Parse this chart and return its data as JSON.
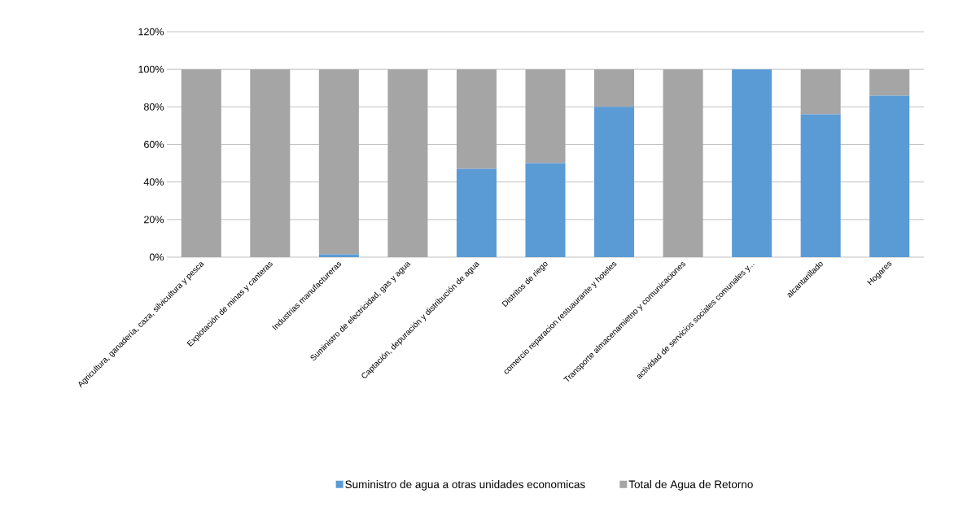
{
  "chart_data": {
    "type": "bar",
    "stacked": true,
    "categories": [
      "Agricultura, ganadería, caza, silvicultura y pesca",
      "Explotación de minas y canteras",
      "Industrias manufactureras",
      "Suministro de electricidad, gas y agua",
      "Captación, depuración y distribución de agua",
      "Distritos de riego",
      "comercio reparacion restuaurante y hoteles",
      "Transporte almacenamietno y comunicaciones",
      "actividad de servicios sociales comunales y...",
      "alcantarillado",
      "Hogares"
    ],
    "series": [
      {
        "name": "Suministro de agua a otras unidades economicas",
        "color": "#5b9bd5",
        "values": [
          0,
          0,
          1.5,
          0,
          47,
          50,
          80,
          0,
          100,
          76,
          86
        ]
      },
      {
        "name": "Total de Agua de Retorno",
        "color": "#a5a5a5",
        "values": [
          100,
          100,
          98.5,
          100,
          53,
          50,
          20,
          100,
          0,
          24,
          14
        ]
      }
    ],
    "ylim": [
      0,
      120
    ],
    "yticks": [
      {
        "value": 0,
        "label": "0%"
      },
      {
        "value": 20,
        "label": "20%"
      },
      {
        "value": 40,
        "label": "40%"
      },
      {
        "value": 60,
        "label": "60%"
      },
      {
        "value": 80,
        "label": "80%"
      },
      {
        "value": 100,
        "label": "100%"
      },
      {
        "value": 120,
        "label": "120%"
      }
    ],
    "grid": "y",
    "legend": "bottom"
  }
}
